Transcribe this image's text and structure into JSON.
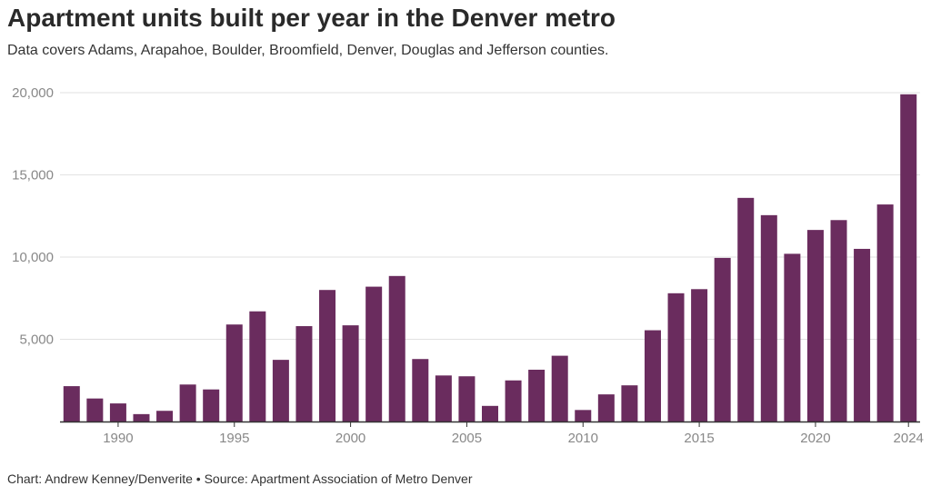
{
  "title": "Apartment units built per year in the Denver metro",
  "subtitle": "Data covers Adams, Arapahoe, Boulder, Broomfield, Denver, Douglas and Jefferson counties.",
  "footer": "Chart: Andrew Kenney/Denverite • Source: Apartment Association of Metro Denver",
  "colors": {
    "bar": "#6a2c5e",
    "grid": "#e2e2e2",
    "axis": "#333333",
    "tick_text": "#888888"
  },
  "chart_data": {
    "type": "bar",
    "title": "Apartment units built per year in the Denver metro",
    "xlabel": "",
    "ylabel": "",
    "categories": [
      1988,
      1989,
      1990,
      1991,
      1992,
      1993,
      1994,
      1995,
      1996,
      1997,
      1998,
      1999,
      2000,
      2001,
      2002,
      2003,
      2004,
      2005,
      2006,
      2007,
      2008,
      2009,
      2010,
      2011,
      2012,
      2013,
      2014,
      2015,
      2016,
      2017,
      2018,
      2019,
      2020,
      2021,
      2022,
      2023,
      2024
    ],
    "values": [
      2150,
      1400,
      1100,
      450,
      650,
      2250,
      1950,
      5900,
      6700,
      3750,
      5800,
      8000,
      5850,
      8200,
      8850,
      3800,
      2800,
      2750,
      950,
      2500,
      3150,
      4000,
      700,
      1650,
      2200,
      5550,
      7800,
      8050,
      9950,
      13600,
      12550,
      10200,
      11650,
      12250,
      10500,
      13200,
      19900
    ],
    "ylim": [
      0,
      20000
    ],
    "yticks": [
      5000,
      10000,
      15000,
      20000
    ],
    "ytick_labels": [
      "5,000",
      "10,000",
      "15,000",
      "20,000"
    ],
    "xticks": [
      1990,
      1995,
      2000,
      2005,
      2010,
      2015,
      2020,
      2024
    ],
    "xtick_labels": [
      "1990",
      "1995",
      "2000",
      "2005",
      "2010",
      "2015",
      "2020",
      "2024"
    ],
    "grid": true,
    "legend": "none"
  }
}
